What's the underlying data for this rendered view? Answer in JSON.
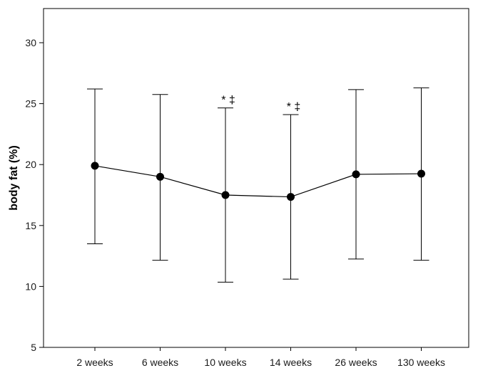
{
  "chart_data": {
    "type": "line",
    "title": "",
    "xlabel": "",
    "ylabel": "body fat (%)",
    "ylim": [
      5,
      32.5
    ],
    "yticks": [
      5,
      10,
      15,
      20,
      25,
      30
    ],
    "categories": [
      "2 weeks",
      "6 weeks",
      "10 weeks",
      "14 weeks",
      "26 weeks",
      "130 weeks"
    ],
    "series": [
      {
        "values": [
          19.9,
          19.0,
          17.5,
          17.35,
          19.2,
          19.25
        ],
        "error_upper": [
          26.2,
          25.75,
          24.65,
          24.1,
          26.15,
          26.3
        ],
        "error_lower": [
          13.5,
          12.15,
          10.35,
          10.6,
          12.25,
          12.15
        ]
      }
    ],
    "annotations": [
      "",
      "",
      "* ‡",
      "* ‡",
      "",
      ""
    ],
    "grid": false,
    "legend": "none"
  }
}
